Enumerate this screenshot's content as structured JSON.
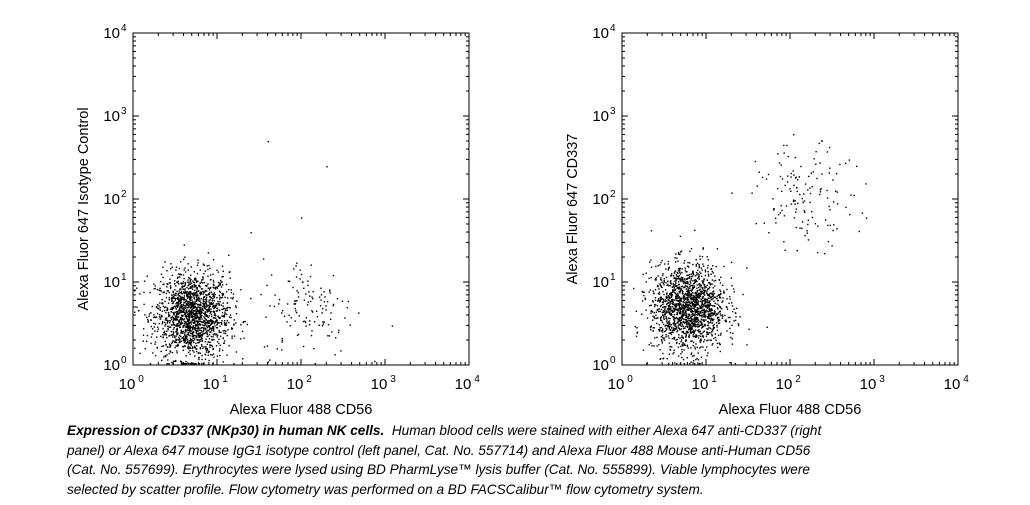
{
  "chart_data": [
    {
      "type": "scatter",
      "panel": "left",
      "xlabel": "Alexa Fluor 488 CD56",
      "ylabel": "Alexa Fluor 647 Isotype Control",
      "x_scale": "log",
      "y_scale": "log",
      "xlim": [
        1,
        10000
      ],
      "ylim": [
        1,
        10000
      ],
      "x_ticks": [
        {
          "base": "10",
          "exp": "0"
        },
        {
          "base": "10",
          "exp": "1"
        },
        {
          "base": "10",
          "exp": "2"
        },
        {
          "base": "10",
          "exp": "3"
        },
        {
          "base": "10",
          "exp": "4"
        }
      ],
      "y_ticks": [
        {
          "base": "10",
          "exp": "0"
        },
        {
          "base": "10",
          "exp": "1"
        },
        {
          "base": "10",
          "exp": "2"
        },
        {
          "base": "10",
          "exp": "3"
        },
        {
          "base": "10",
          "exp": "4"
        }
      ],
      "grid": false,
      "populations": [
        {
          "center_x": 5.0,
          "center_y": 4.0,
          "count": 1700
        },
        {
          "center_x": 120,
          "center_y": 5.0,
          "count": 130
        }
      ],
      "sparse_points": [
        [
          40,
          500
        ],
        [
          200,
          250
        ],
        [
          100,
          60
        ],
        [
          350,
          5
        ],
        [
          1200,
          3
        ],
        [
          25,
          40
        ]
      ]
    },
    {
      "type": "scatter",
      "panel": "right",
      "xlabel": "Alexa Fluor 488 CD56",
      "ylabel": "Alexa Fluor 647 CD337",
      "x_scale": "log",
      "y_scale": "log",
      "xlim": [
        1,
        10000
      ],
      "ylim": [
        1,
        10000
      ],
      "x_ticks": [
        {
          "base": "10",
          "exp": "0"
        },
        {
          "base": "10",
          "exp": "1"
        },
        {
          "base": "10",
          "exp": "2"
        },
        {
          "base": "10",
          "exp": "3"
        },
        {
          "base": "10",
          "exp": "4"
        }
      ],
      "y_ticks": [
        {
          "base": "10",
          "exp": "0"
        },
        {
          "base": "10",
          "exp": "1"
        },
        {
          "base": "10",
          "exp": "2"
        },
        {
          "base": "10",
          "exp": "3"
        },
        {
          "base": "10",
          "exp": "4"
        }
      ],
      "grid": false,
      "populations": [
        {
          "center_x": 6.0,
          "center_y": 5.0,
          "count": 1700
        },
        {
          "center_x": 150,
          "center_y": 110,
          "count": 140
        }
      ],
      "sparse_points": [
        [
          55,
          40
        ],
        [
          30,
          15
        ],
        [
          800,
          60
        ],
        [
          500,
          300
        ],
        [
          20,
          120
        ],
        [
          90,
          450
        ]
      ]
    }
  ],
  "caption": {
    "title": "Expression of CD337 (NKp30) in human NK cells.",
    "lines": [
      "Human blood cells were stained with either Alexa 647 anti-CD337 (right",
      "panel) or Alexa 647 mouse IgG1 isotype control (left panel, Cat. No. 557714) and Alexa Fluor 488 Mouse anti-Human CD56",
      "(Cat. No. 557699).  Erythrocytes were lysed using BD PharmLyse™ lysis buffer (Cat. No. 555899).  Viable lymphocytes were",
      "selected by scatter profile.  Flow cytometry was performed on a BD FACSCalibur™ flow cytometry system."
    ]
  }
}
